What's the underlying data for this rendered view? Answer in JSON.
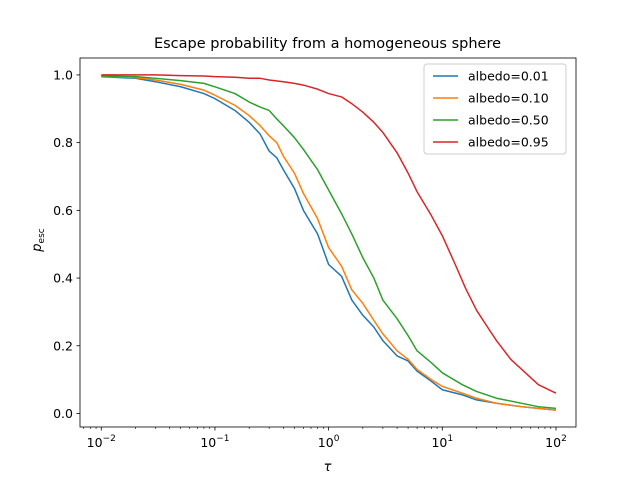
{
  "chart_data": {
    "type": "line",
    "title": "Escape probability from a homogeneous sphere",
    "xlabel": "τ",
    "ylabel": "p",
    "ylabel_sub": "esc",
    "xscale": "log",
    "xlim": [
      0.0065,
      150
    ],
    "ylim": [
      -0.04,
      1.05
    ],
    "xticks": [
      0.01,
      0.1,
      1,
      10,
      100
    ],
    "xtick_labels": [
      {
        "base": "10",
        "exp": "−2"
      },
      {
        "base": "10",
        "exp": "−1"
      },
      {
        "base": "10",
        "exp": "0"
      },
      {
        "base": "10",
        "exp": "1"
      },
      {
        "base": "10",
        "exp": "2"
      }
    ],
    "yticks": [
      0.0,
      0.2,
      0.4,
      0.6,
      0.8,
      1.0
    ],
    "ytick_labels": [
      "0.0",
      "0.2",
      "0.4",
      "0.6",
      "0.8",
      "1.0"
    ],
    "legend_position": "top-right",
    "series": [
      {
        "name": "albedo=0.01",
        "color": "#1f77b4",
        "x": [
          0.01,
          0.02,
          0.03,
          0.05,
          0.08,
          0.1,
          0.15,
          0.2,
          0.25,
          0.3,
          0.35,
          0.4,
          0.5,
          0.6,
          0.8,
          1.0,
          1.3,
          1.6,
          2,
          2.5,
          3,
          4,
          5,
          6,
          8,
          10,
          15,
          20,
          30,
          50,
          70,
          100
        ],
        "y": [
          0.995,
          0.99,
          0.98,
          0.965,
          0.945,
          0.93,
          0.895,
          0.86,
          0.825,
          0.775,
          0.755,
          0.72,
          0.665,
          0.6,
          0.53,
          0.44,
          0.405,
          0.335,
          0.29,
          0.255,
          0.215,
          0.17,
          0.155,
          0.125,
          0.095,
          0.07,
          0.055,
          0.04,
          0.03,
          0.02,
          0.015,
          0.01
        ]
      },
      {
        "name": "albedo=0.10",
        "color": "#ff7f0e",
        "x": [
          0.01,
          0.02,
          0.03,
          0.05,
          0.08,
          0.1,
          0.15,
          0.2,
          0.25,
          0.3,
          0.35,
          0.4,
          0.5,
          0.6,
          0.8,
          1.0,
          1.3,
          1.6,
          2,
          2.5,
          3,
          4,
          5,
          6,
          8,
          10,
          15,
          20,
          30,
          50,
          70,
          100
        ],
        "y": [
          0.997,
          0.992,
          0.985,
          0.972,
          0.955,
          0.94,
          0.91,
          0.88,
          0.85,
          0.82,
          0.8,
          0.76,
          0.71,
          0.65,
          0.575,
          0.49,
          0.435,
          0.365,
          0.325,
          0.275,
          0.235,
          0.185,
          0.16,
          0.13,
          0.1,
          0.08,
          0.06,
          0.045,
          0.03,
          0.02,
          0.015,
          0.01
        ]
      },
      {
        "name": "albedo=0.50",
        "color": "#2ca02c",
        "x": [
          0.01,
          0.02,
          0.03,
          0.05,
          0.08,
          0.1,
          0.15,
          0.2,
          0.25,
          0.3,
          0.35,
          0.4,
          0.5,
          0.6,
          0.8,
          1.0,
          1.3,
          1.6,
          2,
          2.5,
          3,
          4,
          5,
          6,
          8,
          10,
          15,
          20,
          30,
          50,
          70,
          100
        ],
        "y": [
          0.997,
          0.995,
          0.99,
          0.983,
          0.975,
          0.965,
          0.945,
          0.92,
          0.905,
          0.895,
          0.87,
          0.85,
          0.815,
          0.78,
          0.72,
          0.66,
          0.59,
          0.53,
          0.46,
          0.4,
          0.335,
          0.28,
          0.23,
          0.185,
          0.15,
          0.12,
          0.085,
          0.065,
          0.045,
          0.03,
          0.02,
          0.015
        ]
      },
      {
        "name": "albedo=0.95",
        "color": "#d62728",
        "x": [
          0.01,
          0.02,
          0.03,
          0.05,
          0.08,
          0.1,
          0.15,
          0.2,
          0.25,
          0.3,
          0.4,
          0.5,
          0.6,
          0.8,
          1.0,
          1.3,
          1.6,
          2,
          2.5,
          3,
          4,
          5,
          6,
          8,
          10,
          13,
          16,
          20,
          25,
          30,
          40,
          50,
          70,
          100
        ],
        "y": [
          1.0,
          1.0,
          1.0,
          0.998,
          0.997,
          0.995,
          0.993,
          0.99,
          0.99,
          0.985,
          0.98,
          0.975,
          0.97,
          0.958,
          0.945,
          0.935,
          0.915,
          0.89,
          0.86,
          0.83,
          0.77,
          0.71,
          0.655,
          0.585,
          0.525,
          0.44,
          0.37,
          0.305,
          0.255,
          0.215,
          0.16,
          0.13,
          0.085,
          0.06
        ]
      }
    ]
  }
}
